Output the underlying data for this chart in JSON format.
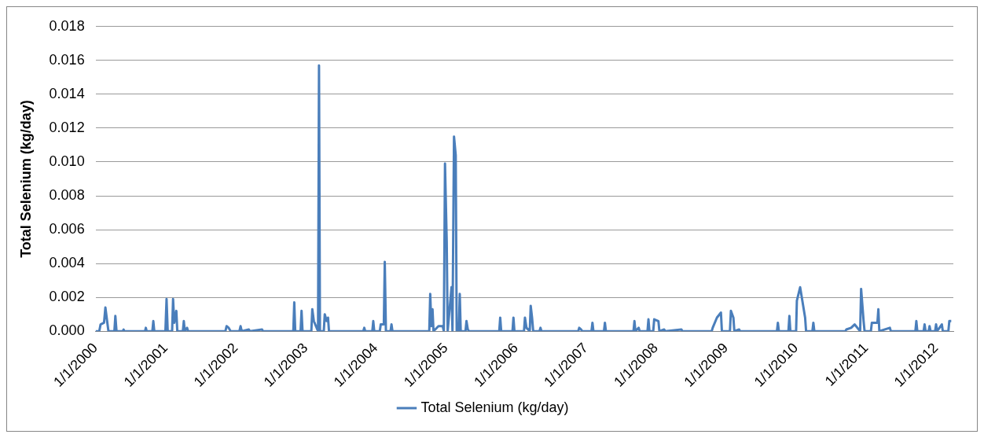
{
  "chart_data": {
    "type": "line",
    "ylabel": "Total Selenium (kg/day)",
    "xlim": [
      "2000-01-01",
      "2012-03-31"
    ],
    "xticks": [
      {
        "value": "2000-01-01",
        "label": "1/1/2000"
      },
      {
        "value": "2001-01-01",
        "label": "1/1/2001"
      },
      {
        "value": "2002-01-01",
        "label": "1/1/2002"
      },
      {
        "value": "2003-01-01",
        "label": "1/1/2003"
      },
      {
        "value": "2004-01-01",
        "label": "1/1/2004"
      },
      {
        "value": "2005-01-01",
        "label": "1/1/2005"
      },
      {
        "value": "2006-01-01",
        "label": "1/1/2006"
      },
      {
        "value": "2007-01-01",
        "label": "1/1/2007"
      },
      {
        "value": "2008-01-01",
        "label": "1/1/2008"
      },
      {
        "value": "2009-01-01",
        "label": "1/1/2009"
      },
      {
        "value": "2010-01-01",
        "label": "1/1/2010"
      },
      {
        "value": "2011-01-01",
        "label": "1/1/2011"
      },
      {
        "value": "2012-01-01",
        "label": "1/1/2012"
      }
    ],
    "ylim": [
      0,
      0.018
    ],
    "yticks": [
      {
        "value": 0,
        "label": "0.000"
      },
      {
        "value": 0.002,
        "label": "0.002"
      },
      {
        "value": 0.004,
        "label": "0.004"
      },
      {
        "value": 0.006,
        "label": "0.006"
      },
      {
        "value": 0.008,
        "label": "0.008"
      },
      {
        "value": 0.01,
        "label": "0.010"
      },
      {
        "value": 0.012,
        "label": "0.012"
      },
      {
        "value": 0.014,
        "label": "0.014"
      },
      {
        "value": 0.016,
        "label": "0.016"
      },
      {
        "value": 0.018,
        "label": "0.018"
      }
    ],
    "grid": "y",
    "legend": "bottom",
    "marker": "none",
    "line_style": "solid",
    "series": [
      {
        "name": "Total Selenium (kg/day)",
        "color": "#4a7ebb",
        "x": [
          "2000-01-01",
          "2000-01-20",
          "2000-01-27",
          "2000-02-14",
          "2000-02-21",
          "2000-03-01",
          "2000-03-08",
          "2000-04-08",
          "2000-04-13",
          "2000-04-19",
          "2000-05-22",
          "2000-05-26",
          "2000-05-30",
          "2000-09-15",
          "2000-09-19",
          "2000-09-23",
          "2000-10-23",
          "2000-10-28",
          "2000-11-02",
          "2000-12-30",
          "2001-01-05",
          "2001-01-11",
          "2001-02-03",
          "2001-02-08",
          "2001-02-14",
          "2001-02-25",
          "2001-03-02",
          "2001-03-31",
          "2001-04-05",
          "2001-04-10",
          "2001-04-22",
          "2001-04-27",
          "2001-11-08",
          "2001-11-14",
          "2001-11-25",
          "2001-12-05",
          "2002-01-20",
          "2002-01-26",
          "2002-02-01",
          "2002-03-10",
          "2002-03-15",
          "2002-05-18",
          "2002-05-23",
          "2002-10-28",
          "2002-11-02",
          "2002-11-07",
          "2002-12-05",
          "2002-12-10",
          "2002-12-15",
          "2003-01-30",
          "2003-02-04",
          "2003-02-12",
          "2003-03-06",
          "2003-03-11",
          "2003-03-16",
          "2003-04-05",
          "2003-04-10",
          "2003-04-20",
          "2003-04-27",
          "2003-05-02",
          "2003-10-28",
          "2003-11-02",
          "2003-11-07",
          "2003-12-14",
          "2003-12-19",
          "2003-12-24",
          "2004-01-22",
          "2004-01-27",
          "2004-02-12",
          "2004-02-17",
          "2004-02-23",
          "2004-03-18",
          "2004-03-23",
          "2004-03-28",
          "2004-10-06",
          "2004-10-11",
          "2004-10-17",
          "2004-10-23",
          "2004-10-28",
          "2004-11-23",
          "2004-12-15",
          "2004-12-21",
          "2004-12-27",
          "2005-01-05",
          "2005-01-10",
          "2005-01-30",
          "2005-02-04",
          "2005-02-12",
          "2005-02-21",
          "2005-02-26",
          "2005-03-09",
          "2005-03-14",
          "2005-03-19",
          "2005-04-13",
          "2005-04-18",
          "2005-04-25",
          "2005-05-01",
          "2005-10-06",
          "2005-10-11",
          "2005-10-16",
          "2005-12-14",
          "2005-12-19",
          "2005-12-24",
          "2006-02-12",
          "2006-02-17",
          "2006-02-25",
          "2006-03-14",
          "2006-03-19",
          "2006-03-26",
          "2006-04-01",
          "2006-05-04",
          "2006-05-09",
          "2006-05-14",
          "2006-11-22",
          "2006-11-27",
          "2006-12-07",
          "2006-12-12",
          "2007-01-30",
          "2007-02-04",
          "2007-02-09",
          "2007-04-05",
          "2007-04-10",
          "2007-04-15",
          "2007-09-06",
          "2007-09-11",
          "2007-09-16",
          "2007-10-03",
          "2007-10-08",
          "2007-11-18",
          "2007-11-23",
          "2007-11-28",
          "2007-12-18",
          "2007-12-23",
          "2008-01-14",
          "2008-01-19",
          "2008-02-13",
          "2008-02-18",
          "2008-05-13",
          "2008-05-18",
          "2008-10-18",
          "2008-10-23",
          "2008-11-14",
          "2008-12-05",
          "2008-12-10",
          "2009-01-21",
          "2009-01-26",
          "2009-02-08",
          "2009-02-13",
          "2009-03-10",
          "2009-03-15",
          "2009-09-23",
          "2009-09-28",
          "2009-10-03",
          "2009-11-22",
          "2009-11-27",
          "2009-12-02",
          "2010-01-01",
          "2010-01-05",
          "2010-01-22",
          "2010-02-17",
          "2010-02-22",
          "2010-03-27",
          "2010-04-01",
          "2010-04-06",
          "2010-09-15",
          "2010-09-20",
          "2010-10-15",
          "2010-11-02",
          "2010-12-01",
          "2010-12-06",
          "2010-12-19",
          "2010-12-24",
          "2011-01-26",
          "2011-01-31",
          "2011-03-01",
          "2011-03-06",
          "2011-03-11",
          "2011-05-05",
          "2011-05-10",
          "2011-09-15",
          "2011-09-20",
          "2011-09-25",
          "2011-10-28",
          "2011-11-02",
          "2011-11-07",
          "2011-11-23",
          "2011-11-28",
          "2011-12-03",
          "2011-12-27",
          "2012-01-01",
          "2012-01-06",
          "2012-01-31",
          "2012-02-05",
          "2012-03-05",
          "2012-03-10",
          "2012-03-20"
        ],
        "values": [
          0,
          0,
          0.0004,
          0.0005,
          0.0014,
          0.0006,
          0,
          0,
          0.0009,
          0,
          0,
          0.0001,
          0,
          0,
          0.0002,
          0,
          0,
          0.0006,
          0,
          0,
          0.0019,
          0,
          0,
          0.0019,
          0.0005,
          0.0012,
          0,
          0,
          0.0006,
          0,
          0.0002,
          0,
          0,
          0.0003,
          0.0002,
          0,
          0,
          0.0003,
          0,
          0.0001,
          0,
          0.0001,
          0,
          0,
          0.0017,
          0,
          0,
          0.0012,
          0,
          0,
          0.0013,
          0.0006,
          0,
          0.0157,
          0,
          0,
          0.001,
          0.0006,
          0.0008,
          0,
          0,
          0.0002,
          0,
          0,
          0.0006,
          0,
          0,
          0.0004,
          0.0004,
          0.0041,
          0,
          0,
          0.0004,
          0,
          0,
          0.0022,
          0.0003,
          0.0013,
          0,
          0.0003,
          0.0003,
          0,
          0.0099,
          0.0053,
          0,
          0.0026,
          0,
          0.0115,
          0.0104,
          0,
          0,
          0.0022,
          0,
          0,
          0.0006,
          0.0001,
          0,
          0,
          0.0008,
          0,
          0,
          0.0008,
          0,
          0,
          0.0008,
          0.0002,
          0,
          0.0015,
          0.0008,
          0,
          0,
          0.0002,
          0,
          0,
          0.0002,
          0.0001,
          0,
          0,
          0.0005,
          0,
          0,
          0.0005,
          0,
          0,
          0.0006,
          0,
          0.0002,
          0,
          0,
          0.0007,
          0,
          0,
          0.0007,
          0.0006,
          0,
          0.0001,
          0,
          0.0001,
          0,
          0,
          0.0002,
          0.0008,
          0.0011,
          0,
          0,
          0.0012,
          0.0008,
          0,
          0.0001,
          0,
          0,
          0.0005,
          0,
          0,
          0.0009,
          0,
          0,
          0.0018,
          0.0026,
          0.0008,
          0,
          0,
          0.0005,
          0,
          0,
          0.0001,
          0.0002,
          0.0004,
          0,
          0.0025,
          0.0006,
          0,
          0,
          0.0005,
          0.0005,
          0.0013,
          0,
          0.0002,
          0,
          0,
          0.0006,
          0,
          0,
          0.0004,
          0,
          0,
          0.0003,
          0,
          0,
          0.0004,
          0,
          0.0004,
          0,
          0,
          0.0006,
          0.0006
        ]
      }
    ]
  }
}
